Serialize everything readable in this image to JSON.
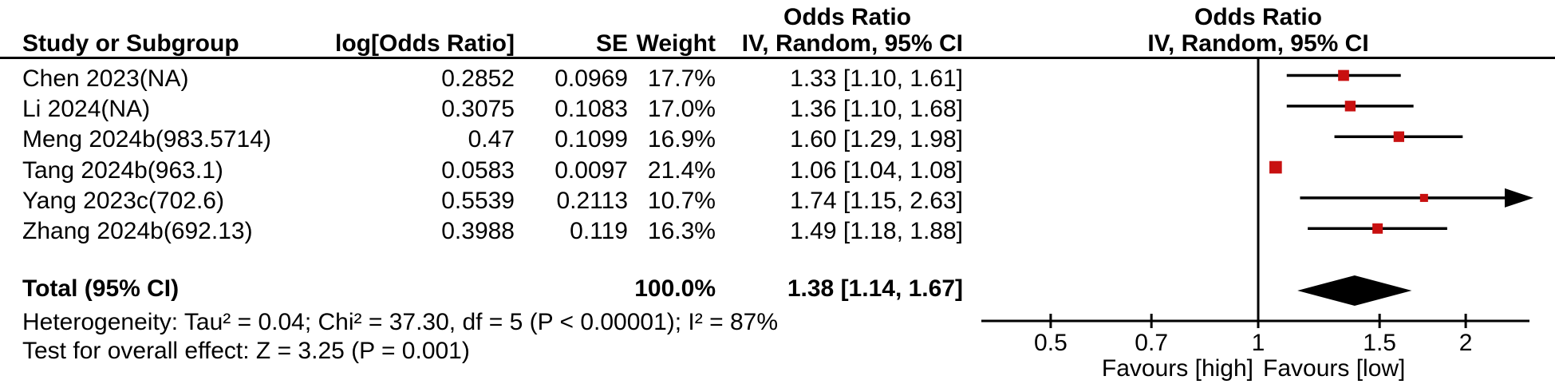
{
  "table": {
    "or_column_header": "Odds Ratio",
    "headers": {
      "study": "Study or Subgroup",
      "log_or": "log[Odds Ratio]",
      "se": "SE",
      "weight": "Weight",
      "ci": "IV, Random, 95% CI"
    },
    "rows": [
      {
        "study": "Chen 2023(NA)",
        "log_or": "0.2852",
        "se": "0.0969",
        "weight": "17.7%",
        "ci": "1.33 [1.10, 1.61]"
      },
      {
        "study": "Li 2024(NA)",
        "log_or": "0.3075",
        "se": "0.1083",
        "weight": "17.0%",
        "ci": "1.36 [1.10, 1.68]"
      },
      {
        "study": "Meng 2024b(983.5714)",
        "log_or": "0.47",
        "se": "0.1099",
        "weight": "16.9%",
        "ci": "1.60 [1.29, 1.98]"
      },
      {
        "study": "Tang 2024b(963.1)",
        "log_or": "0.0583",
        "se": "0.0097",
        "weight": "21.4%",
        "ci": "1.06 [1.04, 1.08]"
      },
      {
        "study": "Yang 2023c(702.6)",
        "log_or": "0.5539",
        "se": "0.2113",
        "weight": "10.7%",
        "ci": "1.74 [1.15, 2.63]"
      },
      {
        "study": "Zhang 2024b(692.13)",
        "log_or": "0.3988",
        "se": "0.119",
        "weight": "16.3%",
        "ci": "1.49 [1.18, 1.88]"
      }
    ],
    "total": {
      "label": "Total (95% CI)",
      "weight": "100.0%",
      "ci": "1.38 [1.14, 1.67]"
    }
  },
  "plot": {
    "or_header": "Odds Ratio",
    "subheader": "IV, Random, 95% CI",
    "favours_left": "Favours [high]",
    "favours_right": "Favours [low]"
  },
  "footer": {
    "heterogeneity": "Heterogeneity: Tau² = 0.04; Chi² = 37.30, df = 5 (P < 0.00001); I² = 87%",
    "overall_effect": "Test for overall effect: Z = 3.25 (P = 0.001)"
  },
  "colors": {
    "marker": "#c81010",
    "diamond": "#000000",
    "line": "#000000"
  },
  "chart_data": {
    "type": "forest",
    "effect_measure": "Odds Ratio",
    "model": "IV, Random, 95% CI",
    "scale": "log10",
    "axis_range": [
      0.4,
      2.47
    ],
    "axis_ticks": [
      {
        "value": 0.5,
        "label": "0.5"
      },
      {
        "value": 0.7,
        "label": "0.7"
      },
      {
        "value": 1,
        "label": "1"
      },
      {
        "value": 1.5,
        "label": "1.5"
      },
      {
        "value": 2,
        "label": "2"
      }
    ],
    "xlabel_left": "Favours [high]",
    "xlabel_right": "Favours [low]",
    "studies": [
      {
        "name": "Chen 2023(NA)",
        "log_or": 0.2852,
        "se": 0.0969,
        "weight_pct": 17.7,
        "or": 1.33,
        "ci_low": 1.1,
        "ci_high": 1.61
      },
      {
        "name": "Li 2024(NA)",
        "log_or": 0.3075,
        "se": 0.1083,
        "weight_pct": 17.0,
        "or": 1.36,
        "ci_low": 1.1,
        "ci_high": 1.68
      },
      {
        "name": "Meng 2024b(983.5714)",
        "log_or": 0.47,
        "se": 0.1099,
        "weight_pct": 16.9,
        "or": 1.6,
        "ci_low": 1.29,
        "ci_high": 1.98
      },
      {
        "name": "Tang 2024b(963.1)",
        "log_or": 0.0583,
        "se": 0.0097,
        "weight_pct": 21.4,
        "or": 1.06,
        "ci_low": 1.04,
        "ci_high": 1.08
      },
      {
        "name": "Yang 2023c(702.6)",
        "log_or": 0.5539,
        "se": 0.2113,
        "weight_pct": 10.7,
        "or": 1.74,
        "ci_low": 1.15,
        "ci_high": 2.63
      },
      {
        "name": "Zhang 2024b(692.13)",
        "log_or": 0.3988,
        "se": 0.119,
        "weight_pct": 16.3,
        "or": 1.49,
        "ci_low": 1.18,
        "ci_high": 1.88
      }
    ],
    "total": {
      "or": 1.38,
      "ci_low": 1.14,
      "ci_high": 1.67,
      "weight_pct": 100.0
    },
    "heterogeneity": {
      "tau2": 0.04,
      "chi2": 37.3,
      "df": 5,
      "p": "< 0.00001",
      "i2_pct": 87
    },
    "overall_effect": {
      "z": 3.25,
      "p": "= 0.001"
    }
  }
}
